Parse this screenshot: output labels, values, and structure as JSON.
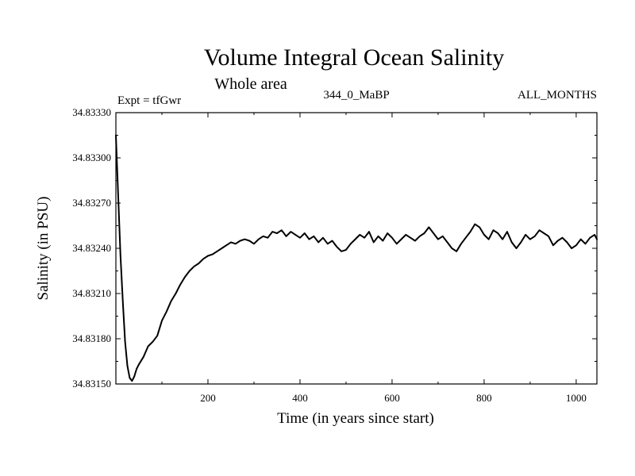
{
  "chart_data": {
    "type": "line",
    "title": "Volume Integral Ocean Salinity",
    "subtitle": "Whole area",
    "annotations": {
      "left": "Expt = tfGwr",
      "center": "344_0_MaBP",
      "right": "ALL_MONTHS"
    },
    "xlabel": "Time (in years since start)",
    "ylabel": "Salinity (in PSU)",
    "xlim": [
      0,
      1045
    ],
    "ylim": [
      34.8315,
      34.8333
    ],
    "x_ticks": [
      200,
      400,
      600,
      800,
      1000
    ],
    "x_tick_labels": [
      "200",
      "400",
      "600",
      "800",
      "1000"
    ],
    "y_ticks": [
      34.8315,
      34.8318,
      34.8321,
      34.8324,
      34.8327,
      34.833,
      34.8333
    ],
    "y_tick_labels": [
      "34.83150",
      "34.83180",
      "34.83210",
      "34.83240",
      "34.83270",
      "34.83300",
      "34.83330"
    ],
    "grid": false,
    "series": [
      {
        "name": "Salinity",
        "color": "#000000",
        "x": [
          0,
          5,
          10,
          15,
          20,
          25,
          30,
          35,
          40,
          45,
          50,
          60,
          70,
          80,
          90,
          100,
          110,
          120,
          130,
          140,
          150,
          160,
          170,
          180,
          190,
          200,
          210,
          220,
          230,
          240,
          250,
          260,
          270,
          280,
          290,
          300,
          310,
          320,
          330,
          340,
          350,
          360,
          370,
          380,
          390,
          400,
          410,
          420,
          430,
          440,
          450,
          460,
          470,
          480,
          490,
          500,
          510,
          520,
          530,
          540,
          550,
          560,
          570,
          580,
          590,
          600,
          610,
          620,
          630,
          640,
          650,
          660,
          670,
          680,
          690,
          700,
          710,
          720,
          730,
          740,
          750,
          760,
          770,
          780,
          790,
          800,
          810,
          820,
          830,
          840,
          850,
          860,
          870,
          880,
          890,
          900,
          910,
          920,
          930,
          940,
          950,
          960,
          970,
          980,
          990,
          1000,
          1010,
          1020,
          1030,
          1040,
          1045
        ],
        "y": [
          34.83315,
          34.83275,
          34.83235,
          34.83205,
          34.83178,
          34.83162,
          34.83154,
          34.83152,
          34.83155,
          34.8316,
          34.83163,
          34.83168,
          34.83175,
          34.83178,
          34.83182,
          34.83192,
          34.83198,
          34.83205,
          34.8321,
          34.83216,
          34.83221,
          34.83225,
          34.83228,
          34.8323,
          34.83233,
          34.83235,
          34.83236,
          34.83238,
          34.8324,
          34.83242,
          34.83244,
          34.83243,
          34.83245,
          34.83246,
          34.83245,
          34.83243,
          34.83246,
          34.83248,
          34.83247,
          34.83251,
          34.8325,
          34.83252,
          34.83248,
          34.83251,
          34.83249,
          34.83247,
          34.8325,
          34.83246,
          34.83248,
          34.83244,
          34.83247,
          34.83243,
          34.83245,
          34.83241,
          34.83238,
          34.83239,
          34.83243,
          34.83246,
          34.83249,
          34.83247,
          34.83251,
          34.83244,
          34.83248,
          34.83245,
          34.8325,
          34.83247,
          34.83243,
          34.83246,
          34.83249,
          34.83247,
          34.83245,
          34.83248,
          34.8325,
          34.83254,
          34.8325,
          34.83246,
          34.83248,
          34.83244,
          34.8324,
          34.83238,
          34.83243,
          34.83247,
          34.83251,
          34.83256,
          34.83254,
          34.83249,
          34.83246,
          34.83252,
          34.8325,
          34.83246,
          34.83251,
          34.83244,
          34.8324,
          34.83244,
          34.83249,
          34.83246,
          34.83248,
          34.83252,
          34.8325,
          34.83248,
          34.83242,
          34.83245,
          34.83247,
          34.83244,
          34.8324,
          34.83242,
          34.83246,
          34.83243,
          34.83247,
          34.83249,
          34.83246
        ]
      }
    ]
  }
}
